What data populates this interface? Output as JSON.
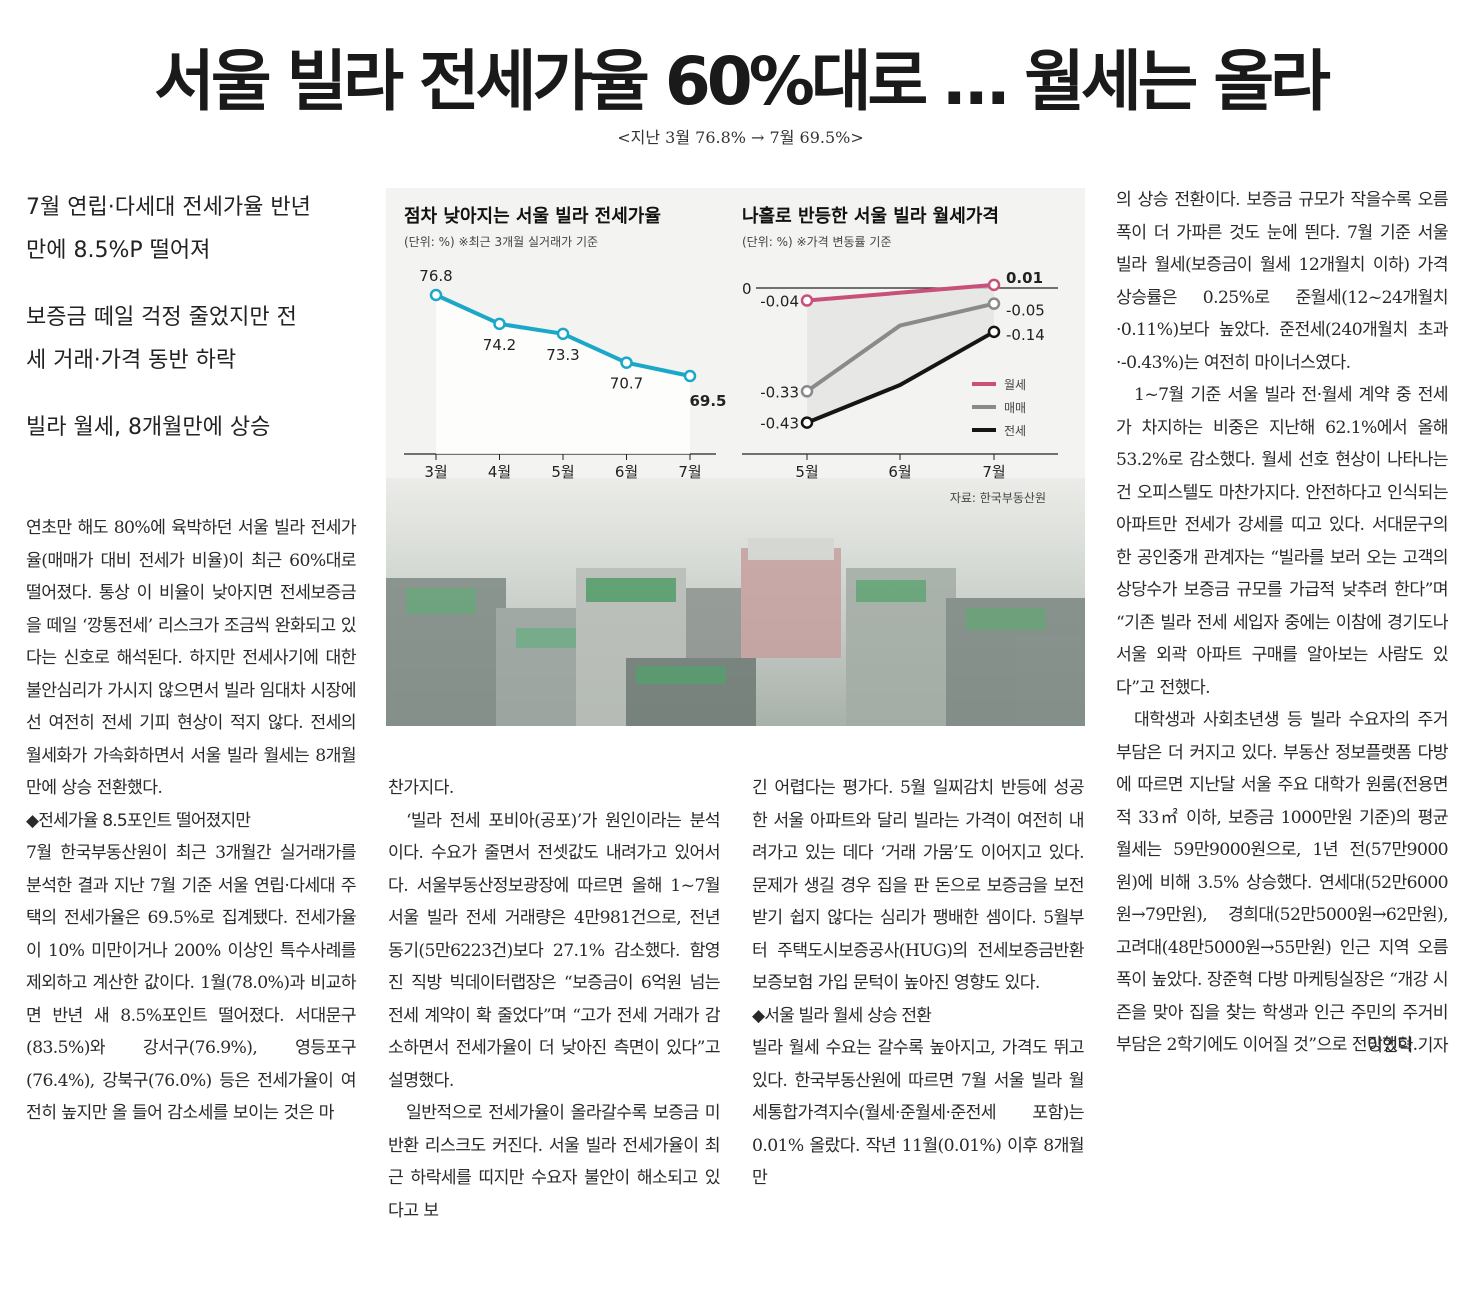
{
  "headline": "서울 빌라 전세가율 60%대로 … 월세는 올라",
  "subhead": "<지난 3월 76.8% → 7월 69.5%>",
  "deck": [
    "7월 연립·다세대 전세가율 반년 만에 8.5%P 떨어져",
    "보증금 떼일 걱정 줄었지만 전세 거래·가격 동반 하락",
    "빌라 월세, 8개월만에 상승"
  ],
  "body": {
    "col1": [
      {
        "t": "p",
        "text": "연초만 해도 80%에 육박하던 서울 빌라 전세가율(매매가 대비 전세가 비율)이 최근 60%대로 떨어졌다. 통상 이 비율이 낮아지면 전세보증금을 떼일 ‘깡통전세’ 리스크가 조금씩 완화되고 있다는 신호로 해석된다. 하지만 전세사기에 대한 불안심리가 가시지 않으면서 빌라 임대차 시장에선 여전히 전세 기피 현상이 적지 않다. 전세의 월세화가 가속화하면서 서울 빌라 월세는 8개월 만에 상승 전환했다."
      },
      {
        "t": "sub",
        "text": "◆전세가율 8.5포인트 떨어졌지만"
      },
      {
        "t": "p",
        "text": "7월 한국부동산원이 최근 3개월간 실거래가를 분석한 결과 지난 7월 기준 서울 연립·다세대 주택의 전세가율은 69.5%로 집계됐다. 전세가율이 10% 미만이거나 200% 이상인 특수사례를 제외하고 계산한 값이다. 1월(78.0%)과 비교하면 반년 새 8.5%포인트 떨어졌다. 서대문구(83.5%)와 강서구(76.9%), 영등포구(76.4%), 강북구(76.0%) 등은 전세가율이 여전히 높지만 올 들어 감소세를 보이는 것은 마"
      }
    ],
    "col2": [
      {
        "t": "p",
        "text": "찬가지다."
      },
      {
        "t": "ind",
        "text": "‘빌라 전세 포비아(공포)’가 원인이라는 분석이다. 수요가 줄면서 전셋값도 내려가고 있어서다. 서울부동산정보광장에 따르면 올해 1~7월 서울 빌라 전세 거래량은 4만981건으로, 전년 동기(5만6223건)보다 27.1% 감소했다. 함영진 직방 빅데이터랩장은 “보증금이 6억원 넘는 전세 계약이 확 줄었다”며 “고가 전세 거래가 감소하면서 전세가율이 더 낮아진 측면이 있다”고 설명했다."
      },
      {
        "t": "ind",
        "text": "일반적으로 전세가율이 올라갈수록 보증금 미반환 리스크도 커진다. 서울 빌라 전세가율이 최근 하락세를 띠지만 수요자 불안이 해소되고 있다고 보"
      }
    ],
    "col3": [
      {
        "t": "p",
        "text": "긴 어렵다는 평가다. 5월 일찌감치 반등에 성공한 서울 아파트와 달리 빌라는 가격이 여전히 내려가고 있는 데다 ‘거래 가뭄’도 이어지고 있다. 문제가 생길 경우 집을 판 돈으로 보증금을 보전받기 쉽지 않다는 심리가 팽배한 셈이다. 5월부터 주택도시보증공사(HUG)의 전세보증금반환보증보험 가입 문턱이 높아진 영향도 있다."
      },
      {
        "t": "sub",
        "text": "◆서울 빌라 월세 상승 전환"
      },
      {
        "t": "p",
        "text": "빌라 월세 수요는 갈수록 높아지고, 가격도 뛰고 있다. 한국부동산원에 따르면 7월 서울 빌라 월세통합가격지수(월세·준월세·준전세 포함)는 0.01% 올랐다. 작년 11월(0.01%) 이후 8개월 만"
      }
    ],
    "col4": [
      {
        "t": "p",
        "text": "의 상승 전환이다. 보증금 규모가 작을수록 오름폭이 더 가파른 것도 눈에 띈다. 7월 기준 서울 빌라 월세(보증금이 월세 12개월치 이하) 가격 상승률은 0.25%로 준월세(12~24개월치·0.11%)보다 높았다. 준전세(240개월치 초과·-0.43%)는 여전히 마이너스였다."
      },
      {
        "t": "ind",
        "text": "1~7월 기준 서울 빌라 전·월세 계약 중 전세가 차지하는 비중은 지난해 62.1%에서 올해 53.2%로 감소했다. 월세 선호 현상이 나타나는 건 오피스텔도 마찬가지다. 안전하다고 인식되는 아파트만 전세가 강세를 띠고 있다. 서대문구의 한 공인중개 관계자는 “빌라를 보러 오는 고객의 상당수가 보증금 규모를 가급적 낮추려 한다”며 “기존 빌라 전세 세입자 중에는 이참에 경기도나 서울 외곽 아파트 구매를 알아보는 사람도 있다”고 전했다."
      },
      {
        "t": "ind",
        "text": "대학생과 사회초년생 등 빌라 수요자의 주거 부담은 더 커지고 있다. 부동산 정보플랫폼 다방에 따르면 지난달 서울 주요 대학가 원룸(전용면적 33㎡ 이하, 보증금 1000만원 기준)의 평균 월세는 59만9000원으로, 1년 전(57만9000원)에 비해 3.5% 상승했다. 연세대(52만6000원→79만원), 경희대(52만5000원→62만원), 고려대(48만5000원→55만원) 인근 지역 오름폭이 높았다. 장준혁 다방 마케팅실장은 “개강 시즌을 맞아 집을 찾는 학생과 인근 주민의 주거비 부담은 2학기에도 이어질 것”으로 전망했다."
      },
      {
        "t": "byline",
        "text": "이인혁 기자"
      }
    ]
  },
  "chart_data": [
    {
      "type": "line",
      "title": "점차 낮아지는 서울 빌라 전세가율",
      "unit": "(단위: %)  ※최근 3개월 실거래가 기준",
      "categories": [
        "3월",
        "4월",
        "5월",
        "6월",
        "7월"
      ],
      "series": [
        {
          "values": [
            76.8,
            74.2,
            73.3,
            70.7,
            69.5
          ],
          "color": "#1aa7c8"
        }
      ],
      "ylim": [
        68,
        78
      ]
    },
    {
      "type": "line",
      "title": "나홀로 반등한 서울 빌라 월세가격",
      "unit": "(단위: %)  ※가격 변동률 기준",
      "source": "자료: 한국부동산원",
      "zero_label": "0",
      "categories": [
        "5월",
        "6월",
        "7월"
      ],
      "ylim": [
        -0.5,
        0.05
      ],
      "legend": "right",
      "series": [
        {
          "name": "월세",
          "values": [
            -0.04,
            null,
            0.01
          ],
          "color": "#c8507a",
          "labels": [
            "-0.04",
            null,
            "0.01"
          ]
        },
        {
          "name": "매매",
          "values": [
            -0.33,
            -0.12,
            -0.05
          ],
          "color": "#8a8a8a",
          "labels": [
            "-0.33",
            null,
            "-0.05"
          ]
        },
        {
          "name": "전세",
          "values": [
            -0.43,
            -0.31,
            -0.14
          ],
          "color": "#151515",
          "labels": [
            "-0.43",
            null,
            "-0.14"
          ]
        }
      ]
    }
  ]
}
